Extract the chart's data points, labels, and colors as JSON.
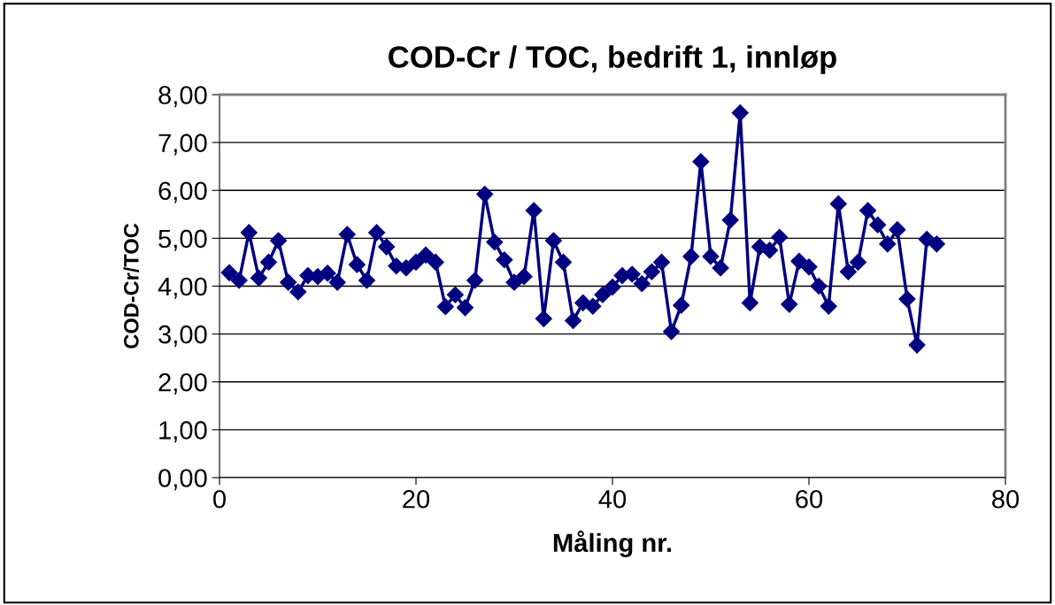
{
  "chart_data": {
    "type": "line",
    "title": "COD-Cr / TOC, bedrift 1, innløp",
    "xlabel": "Måling nr.",
    "ylabel": "COD-Cr/TOC",
    "x": [
      1,
      2,
      3,
      4,
      5,
      6,
      7,
      8,
      9,
      10,
      11,
      12,
      13,
      14,
      15,
      16,
      17,
      18,
      19,
      20,
      21,
      22,
      23,
      24,
      25,
      26,
      27,
      28,
      29,
      30,
      31,
      32,
      33,
      34,
      35,
      36,
      37,
      38,
      39,
      40,
      41,
      42,
      43,
      44,
      45,
      46,
      47,
      48,
      49,
      50,
      51,
      52,
      53,
      54,
      55,
      56,
      57,
      58,
      59,
      60,
      61,
      62,
      63,
      64,
      65,
      66,
      67,
      68,
      69,
      70,
      71,
      72,
      73
    ],
    "series": [
      {
        "color": "#000080",
        "values": [
          4.28,
          4.12,
          5.12,
          4.17,
          4.5,
          4.95,
          4.08,
          3.88,
          4.22,
          4.2,
          4.27,
          4.08,
          5.08,
          4.45,
          4.12,
          5.12,
          4.82,
          4.42,
          4.38,
          4.5,
          4.65,
          4.5,
          3.57,
          3.82,
          3.55,
          4.12,
          5.92,
          4.92,
          4.55,
          4.08,
          4.2,
          5.58,
          3.32,
          4.95,
          4.5,
          3.28,
          3.65,
          3.58,
          3.82,
          3.98,
          4.22,
          4.25,
          4.05,
          4.3,
          4.5,
          3.05,
          3.6,
          4.62,
          6.6,
          4.62,
          4.38,
          5.38,
          7.62,
          3.65,
          4.82,
          4.75,
          5.02,
          3.62,
          4.52,
          4.4,
          4.0,
          3.58,
          5.72,
          4.3,
          4.5,
          5.58,
          5.28,
          4.88,
          5.18,
          3.73,
          2.77,
          4.98,
          4.88
        ]
      }
    ],
    "xlim": [
      0,
      80
    ],
    "xticks": [
      0,
      20,
      40,
      60,
      80
    ],
    "ylim": [
      0,
      8
    ],
    "yticks": [
      {
        "value": 0,
        "label": "0,00"
      },
      {
        "value": 1,
        "label": "1,00"
      },
      {
        "value": 2,
        "label": "2,00"
      },
      {
        "value": 3,
        "label": "3,00"
      },
      {
        "value": 4,
        "label": "4,00"
      },
      {
        "value": 5,
        "label": "5,00"
      },
      {
        "value": 6,
        "label": "6,00"
      },
      {
        "value": 7,
        "label": "7,00"
      },
      {
        "value": 8,
        "label": "8,00"
      }
    ],
    "grid": "y",
    "marker": "diamond",
    "line_style": "solid",
    "legend": false
  }
}
